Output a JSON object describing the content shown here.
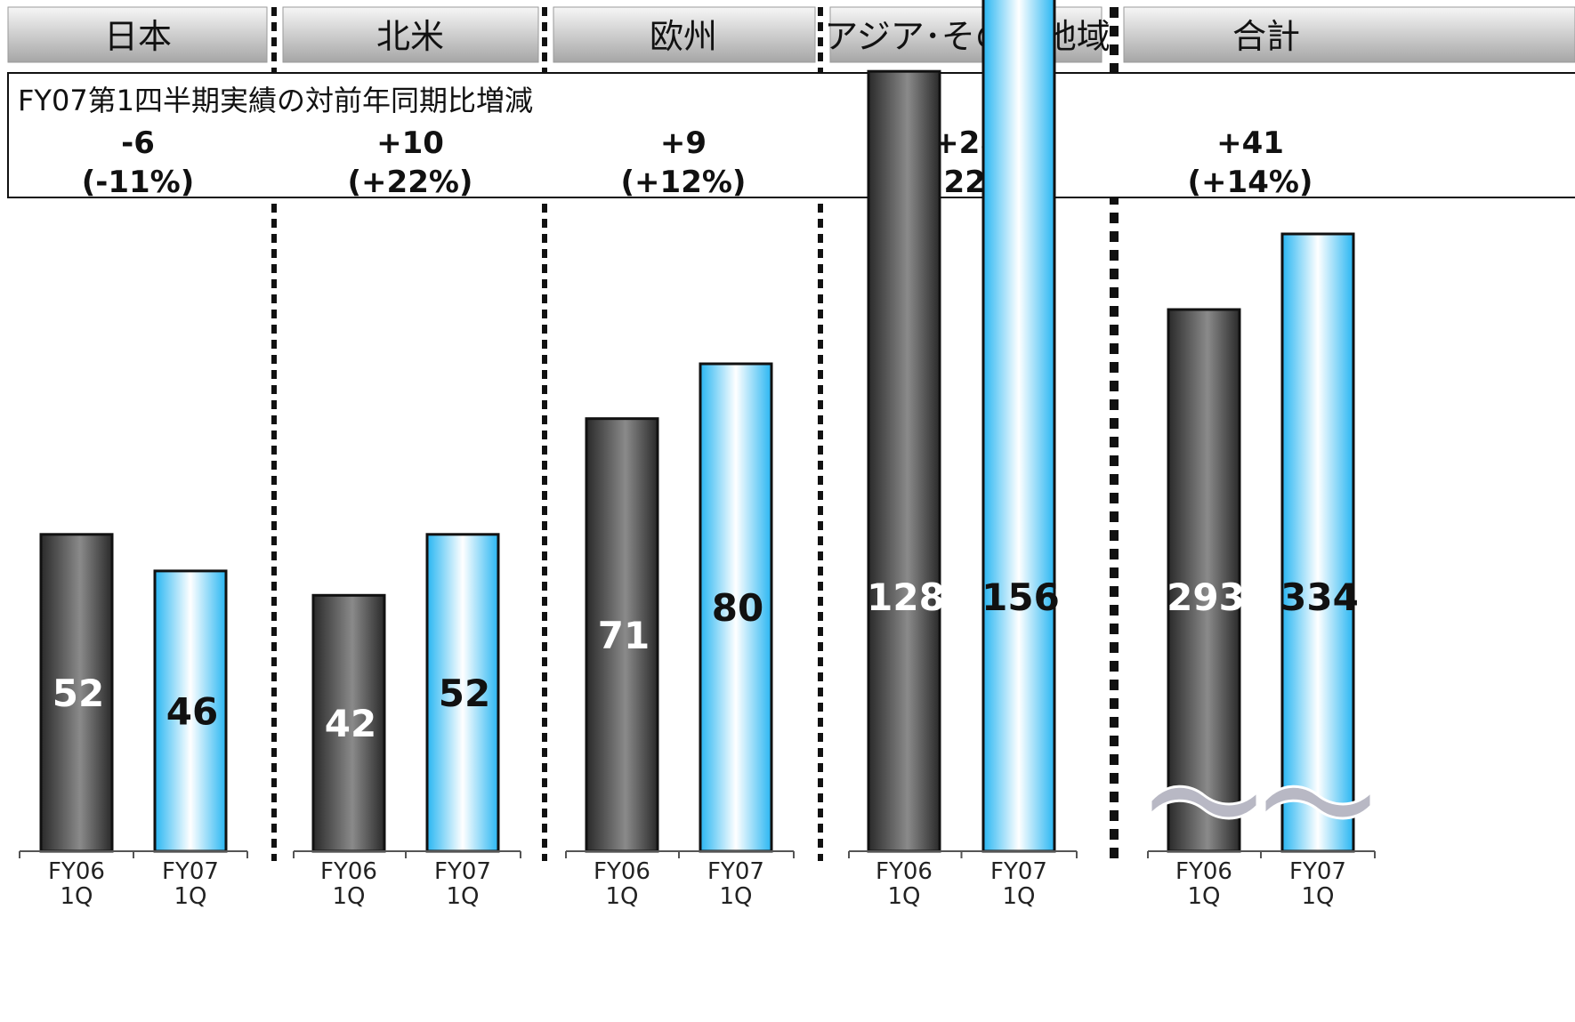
{
  "chart_data": {
    "type": "bar",
    "title": "",
    "subtitle": "FY07第1四半期実績の対前年同期比増減",
    "xlabel": "",
    "ylabel": "",
    "ylim": [
      0,
      340
    ],
    "grid": false,
    "axis_break_on": [
      "合計"
    ],
    "groups": [
      {
        "name": "日本",
        "delta": "-6",
        "delta_pct": "(-11%)",
        "bars": [
          {
            "period": "FY06",
            "quarter": "1Q",
            "value": 52
          },
          {
            "period": "FY07",
            "quarter": "1Q",
            "value": 46
          }
        ]
      },
      {
        "name": "北米",
        "delta": "+10",
        "delta_pct": "(+22%)",
        "bars": [
          {
            "period": "FY06",
            "quarter": "1Q",
            "value": 42
          },
          {
            "period": "FY07",
            "quarter": "1Q",
            "value": 52
          }
        ]
      },
      {
        "name": "欧州",
        "delta": "+9",
        "delta_pct": "(+12%)",
        "bars": [
          {
            "period": "FY06",
            "quarter": "1Q",
            "value": 71
          },
          {
            "period": "FY07",
            "quarter": "1Q",
            "value": 80
          }
        ]
      },
      {
        "name": "アジア･その他地域",
        "delta": "+28",
        "delta_pct": "(+22%)",
        "bars": [
          {
            "period": "FY06",
            "quarter": "1Q",
            "value": 128
          },
          {
            "period": "FY07",
            "quarter": "1Q",
            "value": 156
          }
        ]
      },
      {
        "name": "合計",
        "delta": "+41",
        "delta_pct": "(+14%)",
        "bars": [
          {
            "period": "FY06",
            "quarter": "1Q",
            "value": 293
          },
          {
            "period": "FY07",
            "quarter": "1Q",
            "value": 334
          }
        ]
      }
    ],
    "colors": {
      "fy06_bar_dark": "#2e2e2e",
      "fy06_bar_light": "#8a8a8a",
      "fy07_bar_blue": "#29b6f2",
      "fy07_bar_white": "#ffffff",
      "header_light": "#f4f4f4",
      "header_dark": "#a9a9a9",
      "divider": "#111111",
      "break_mark": "#b8b8c4"
    }
  }
}
